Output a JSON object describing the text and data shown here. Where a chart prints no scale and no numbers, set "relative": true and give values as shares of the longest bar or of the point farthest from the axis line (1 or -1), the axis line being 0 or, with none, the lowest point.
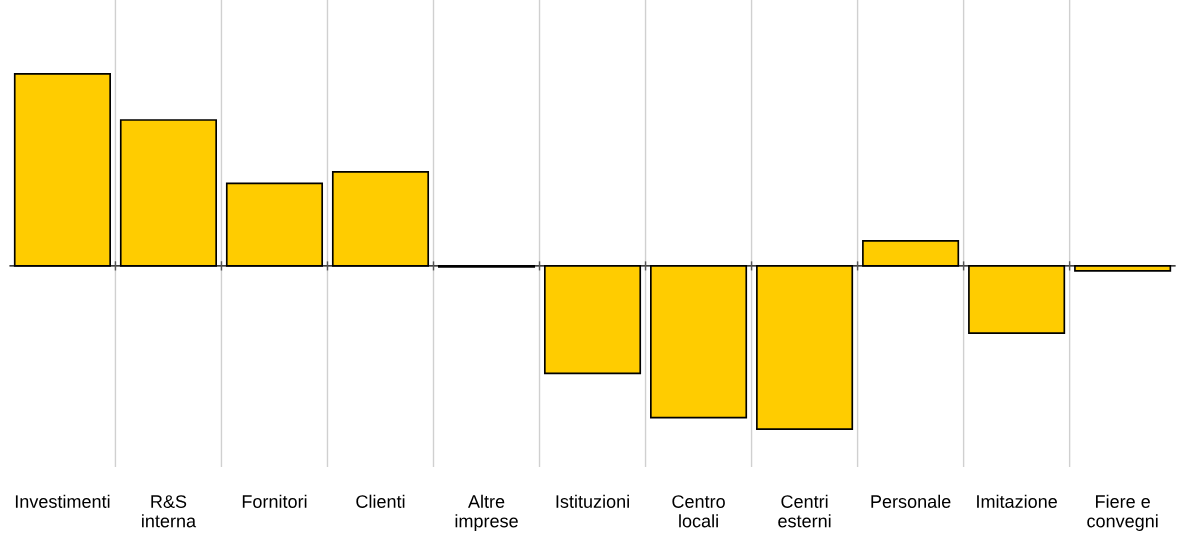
{
  "chart_data": {
    "type": "bar",
    "relative": true,
    "grid": "x",
    "categories": [
      "Investimenti",
      "R&S\ninterna",
      "Fornitori",
      "Clienti",
      "Altre\nimprese",
      "Istituzioni",
      "Centro\nlocali",
      "Centri\nesterni",
      "Personale",
      "Imitazione",
      "Fiere e\nconvegni"
    ],
    "values": [
      1,
      0.76,
      0.43,
      0.49,
      -0.005,
      -0.56,
      -0.79,
      -0.85,
      0.13,
      -0.35,
      -0.026
    ],
    "color": "#ffcc00"
  }
}
